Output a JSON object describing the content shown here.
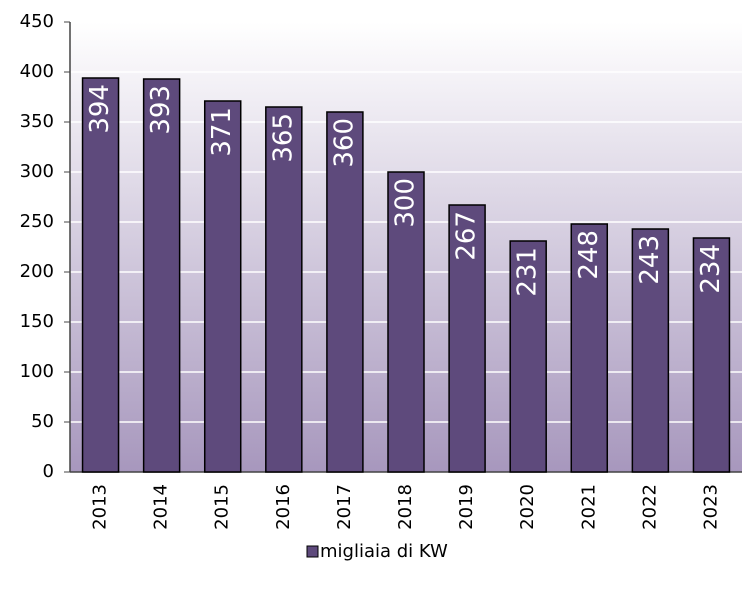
{
  "chart_data": {
    "type": "bar",
    "categories": [
      "2013",
      "2014",
      "2015",
      "2016",
      "2017",
      "2018",
      "2019",
      "2020",
      "2021",
      "2022",
      "2023"
    ],
    "series": [
      {
        "name": "migliaia di KW",
        "color": "#5e4a7c",
        "values": [
          394,
          393,
          371,
          365,
          360,
          300,
          267,
          231,
          248,
          243,
          234
        ]
      }
    ],
    "ylim": [
      0,
      450
    ],
    "yticks": [
      0,
      50,
      100,
      150,
      200,
      250,
      300,
      350,
      400,
      450
    ],
    "grid": true,
    "legend": "bottom"
  }
}
